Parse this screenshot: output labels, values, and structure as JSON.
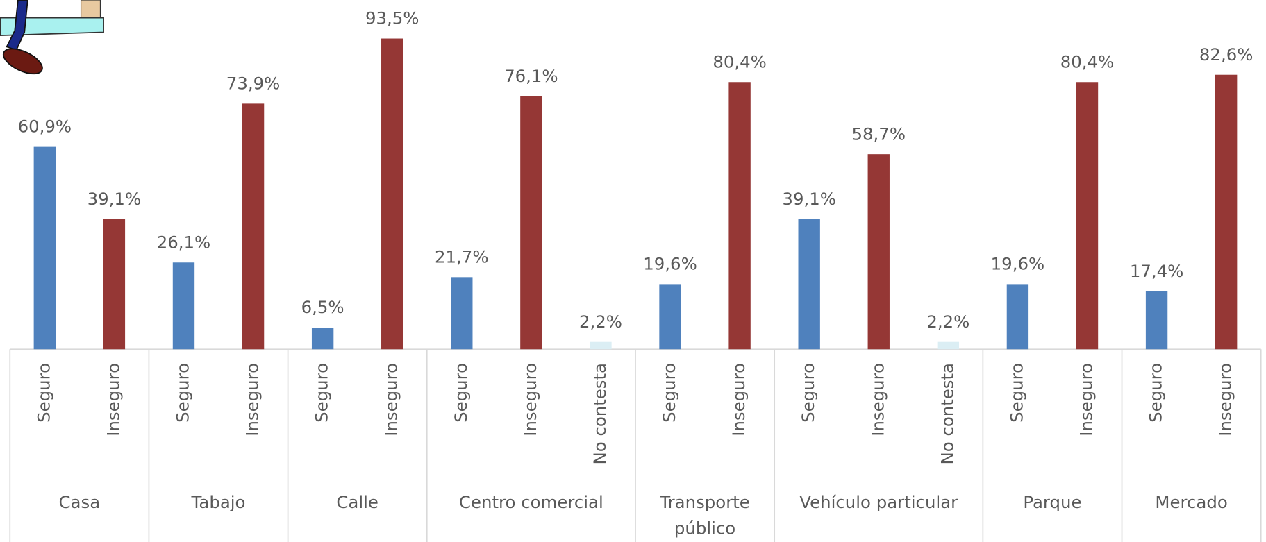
{
  "chart_data": {
    "type": "grouped-bar",
    "ylim": [
      0,
      100
    ],
    "groups": [
      {
        "name": "Casa",
        "bars": [
          {
            "label": "Seguro",
            "value": 60.9,
            "value_label": "60,9%",
            "color": "#4f81bd"
          },
          {
            "label": "Inseguro",
            "value": 39.1,
            "value_label": "39,1%",
            "color": "#953735"
          }
        ]
      },
      {
        "name": "Tabajo",
        "bars": [
          {
            "label": "Seguro",
            "value": 26.1,
            "value_label": "26,1%",
            "color": "#4f81bd"
          },
          {
            "label": "Inseguro",
            "value": 73.9,
            "value_label": "73,9%",
            "color": "#953735"
          }
        ]
      },
      {
        "name": "Calle",
        "bars": [
          {
            "label": "Seguro",
            "value": 6.5,
            "value_label": "6,5%",
            "color": "#4f81bd"
          },
          {
            "label": "Inseguro",
            "value": 93.5,
            "value_label": "93,5%",
            "color": "#953735"
          }
        ]
      },
      {
        "name": "Centro comercial",
        "bars": [
          {
            "label": "Seguro",
            "value": 21.7,
            "value_label": "21,7%",
            "color": "#4f81bd"
          },
          {
            "label": "Inseguro",
            "value": 76.1,
            "value_label": "76,1%",
            "color": "#953735"
          },
          {
            "label": "No contesta",
            "value": 2.2,
            "value_label": "2,2%",
            "color": "#dbeef4"
          }
        ]
      },
      {
        "name": "Transporte público",
        "bars": [
          {
            "label": "Seguro",
            "value": 19.6,
            "value_label": "19,6%",
            "color": "#4f81bd"
          },
          {
            "label": "Inseguro",
            "value": 80.4,
            "value_label": "80,4%",
            "color": "#953735"
          }
        ]
      },
      {
        "name": "Vehículo particular",
        "bars": [
          {
            "label": "Seguro",
            "value": 39.1,
            "value_label": "39,1%",
            "color": "#4f81bd"
          },
          {
            "label": "Inseguro",
            "value": 58.7,
            "value_label": "58,7%",
            "color": "#953735"
          },
          {
            "label": "No contesta",
            "value": 2.2,
            "value_label": "2,2%",
            "color": "#dbeef4"
          }
        ]
      },
      {
        "name": "Parque",
        "bars": [
          {
            "label": "Seguro",
            "value": 19.6,
            "value_label": "19,6%",
            "color": "#4f81bd"
          },
          {
            "label": "Inseguro",
            "value": 80.4,
            "value_label": "80,4%",
            "color": "#953735"
          }
        ]
      },
      {
        "name": "Mercado",
        "bars": [
          {
            "label": "Seguro",
            "value": 17.4,
            "value_label": "17,4%",
            "color": "#4f81bd"
          },
          {
            "label": "Inseguro",
            "value": 82.6,
            "value_label": "82,6%",
            "color": "#953735"
          }
        ]
      }
    ]
  }
}
